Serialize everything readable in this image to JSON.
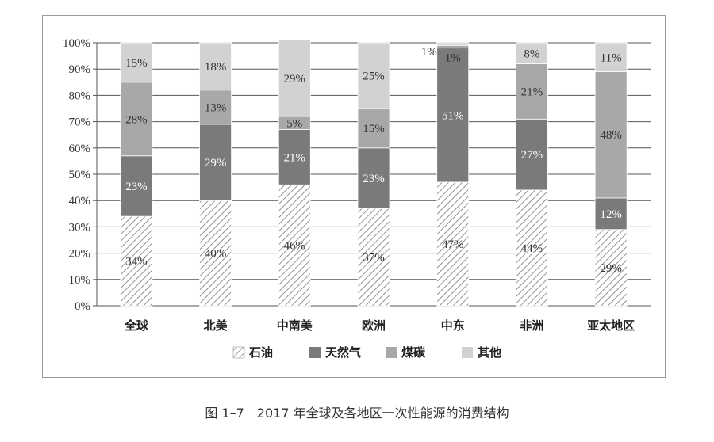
{
  "caption": "图 1–7　2017 年全球及各地区一次性能源的消费结构",
  "chart_data": {
    "type": "bar",
    "stacked": true,
    "categories": [
      "全球",
      "北美",
      "中南美",
      "欧洲",
      "中东",
      "非洲",
      "亚太地区"
    ],
    "series": [
      {
        "name": "石油",
        "values": [
          34,
          40,
          46,
          37,
          47,
          44,
          29
        ],
        "labels": [
          "34%",
          "40%",
          "46%",
          "37%",
          "47%",
          "44%",
          "29%"
        ],
        "color": "#ffffff",
        "pattern": "hatch"
      },
      {
        "name": "天然气",
        "values": [
          23,
          29,
          21,
          23,
          51,
          27,
          12
        ],
        "labels": [
          "23%",
          "29%",
          "21%",
          "23%",
          "51%",
          "27%",
          "12%"
        ],
        "color": "#7a7a7a"
      },
      {
        "name": "煤碳",
        "values": [
          28,
          13,
          5,
          15,
          1,
          21,
          48
        ],
        "labels": [
          "28%",
          "13%",
          "5%",
          "15%",
          "1%",
          "21%",
          "48%"
        ],
        "color": "#a8a8a8"
      },
      {
        "name": "其他",
        "values": [
          15,
          18,
          29,
          25,
          1,
          8,
          11
        ],
        "labels": [
          "15%",
          "18%",
          "29%",
          "25%",
          "1%",
          "8%",
          "11%"
        ],
        "color": "#d2d2d2"
      }
    ],
    "ylim": [
      0,
      100
    ],
    "yticks": [
      "0%",
      "10%",
      "20%",
      "30%",
      "40%",
      "50%",
      "60%",
      "70%",
      "80%",
      "90%",
      "100%"
    ],
    "grid": true,
    "legend_position": "bottom"
  }
}
